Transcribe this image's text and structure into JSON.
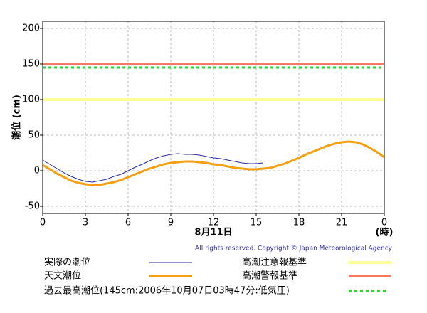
{
  "chart_data": {
    "type": "line",
    "y_label": "潮位 (cm)",
    "x_label": "8月11日",
    "x_unit": "(時)",
    "copyright": "All rights reserved. Copyright © Japan Meteorological Agency",
    "xlim": [
      0,
      24
    ],
    "ylim": [
      -60,
      210
    ],
    "xticks": [
      0,
      3,
      6,
      9,
      12,
      15,
      18,
      21,
      {
        "value": 24,
        "label": "0"
      }
    ],
    "yticks": [
      -50,
      0,
      50,
      100,
      150,
      200
    ],
    "grid": true,
    "x": [
      0,
      0.5,
      1,
      1.5,
      2,
      2.5,
      3,
      3.5,
      4,
      4.5,
      5,
      5.5,
      6,
      6.5,
      7,
      7.5,
      8,
      8.5,
      9,
      9.5,
      10,
      10.5,
      11,
      11.5,
      12,
      12.5,
      13,
      13.5,
      14,
      14.5,
      15,
      15.5,
      16,
      16.5,
      17,
      17.5,
      18,
      18.5,
      19,
      19.5,
      20,
      20.5,
      21,
      21.5,
      22,
      22.5,
      23,
      23.5,
      24
    ],
    "series": [
      {
        "name": "実際の潮位",
        "color": "#2a2aa0",
        "width": 1,
        "values": [
          15,
          9,
          3,
          -3,
          -8,
          -12,
          -15,
          -16,
          -14,
          -12,
          -8,
          -5,
          0,
          5,
          9,
          14,
          18,
          21,
          23,
          24,
          23,
          23,
          22,
          20,
          18,
          17,
          15,
          13,
          11,
          10,
          10,
          11,
          null,
          null,
          null,
          null,
          null,
          null,
          null,
          null,
          null,
          null,
          null,
          null,
          null,
          null,
          null,
          null,
          null
        ]
      },
      {
        "name": "天文潮位",
        "color": "#f5a010",
        "width": 3,
        "values": [
          8,
          2,
          -4,
          -9,
          -14,
          -17,
          -19,
          -20,
          -20,
          -18,
          -16,
          -13,
          -9,
          -5,
          -1,
          3,
          6,
          9,
          11,
          12,
          13,
          13,
          12,
          11,
          9,
          8,
          6,
          4,
          3,
          2,
          2,
          3,
          4,
          7,
          10,
          14,
          18,
          23,
          27,
          31,
          35,
          38,
          40,
          41,
          40,
          37,
          32,
          26,
          19
        ]
      }
    ],
    "hlines": [
      {
        "name": "高潮注意報基準",
        "value": 100,
        "color": "#ffff99",
        "width": 4,
        "dash": "none"
      },
      {
        "name": "高潮警報基準",
        "value": 150,
        "color": "#f87860",
        "width": 4,
        "dash": "none"
      },
      {
        "name": "過去最高潮位(145cm:2006年10月07日03時47分:低気圧)",
        "value": 145,
        "color": "#22dd22",
        "width": 3,
        "dash": "4 4"
      }
    ]
  }
}
